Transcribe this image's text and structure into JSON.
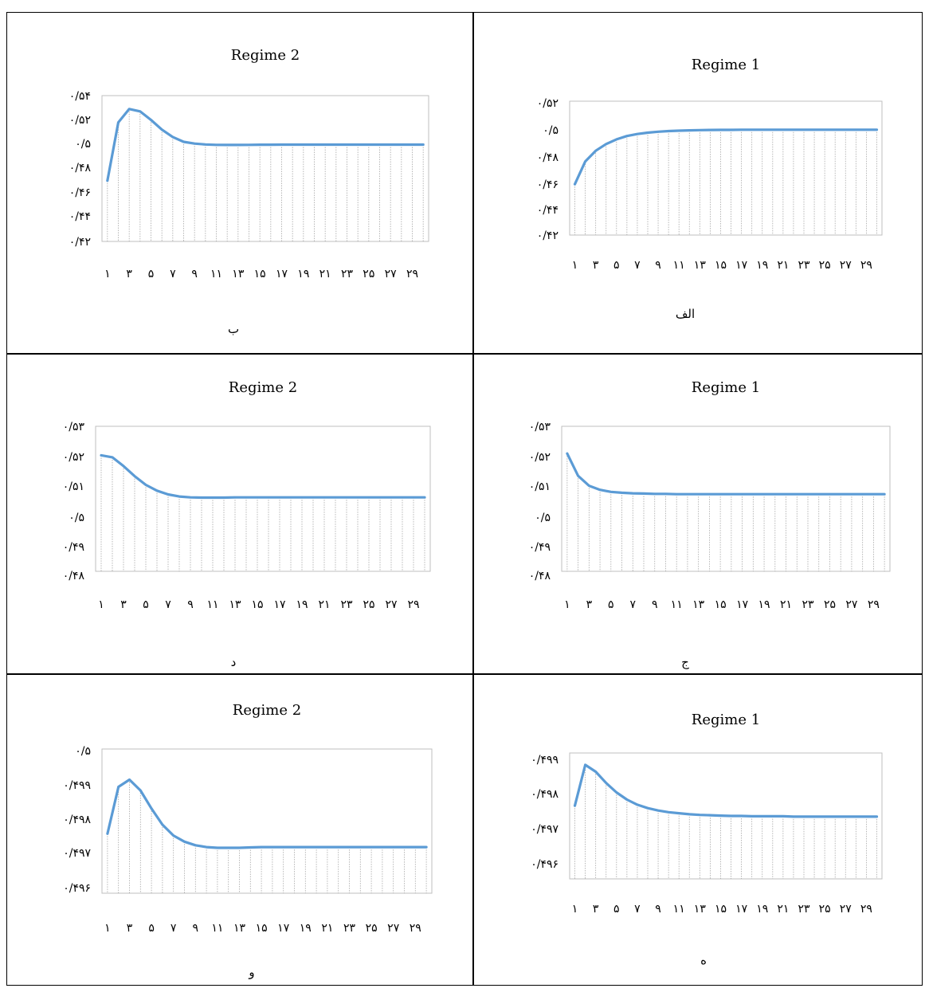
{
  "charts": [
    {
      "id": "b",
      "caption": "ب",
      "chart_data": {
        "type": "line",
        "title": "Regime 2",
        "x": [
          1,
          2,
          3,
          4,
          5,
          6,
          7,
          8,
          9,
          10,
          11,
          12,
          13,
          14,
          15,
          16,
          17,
          18,
          19,
          20,
          21,
          22,
          23,
          24,
          25,
          26,
          27,
          28,
          29,
          30
        ],
        "x_tick_labels": [
          "۱",
          "۳",
          "۵",
          "۷",
          "۹",
          "۱۱",
          "۱۳",
          "۱۵",
          "۱۷",
          "۱۹",
          "۲۱",
          "۲۳",
          "۲۵",
          "۲۷",
          "۲۹"
        ],
        "y_tick_labels": [
          "۰/۵۴",
          "۰/۵۲",
          "۰/۵",
          "۰/۴۸",
          "۰/۴۶",
          "۰/۴۴",
          "۰/۴۲"
        ],
        "ylim": [
          0.42,
          0.54
        ],
        "series": [
          {
            "values": [
              0.47,
              0.518,
              0.529,
              0.527,
              0.52,
              0.512,
              0.506,
              0.502,
              0.5005,
              0.4998,
              0.4995,
              0.4994,
              0.4994,
              0.4995,
              0.4996,
              0.4996,
              0.4997,
              0.4997,
              0.4997,
              0.4997,
              0.4997,
              0.4997,
              0.4997,
              0.4997,
              0.4997,
              0.4997,
              0.4997,
              0.4997,
              0.4997,
              0.4997
            ]
          }
        ],
        "color": "#5b9bd5",
        "vertical_gridlines": true
      }
    },
    {
      "id": "alef",
      "caption": "الف",
      "chart_data": {
        "type": "line",
        "title": "Regime 1",
        "x": [
          1,
          2,
          3,
          4,
          5,
          6,
          7,
          8,
          9,
          10,
          11,
          12,
          13,
          14,
          15,
          16,
          17,
          18,
          19,
          20,
          21,
          22,
          23,
          24,
          25,
          26,
          27,
          28,
          29,
          30
        ],
        "x_tick_labels": [
          "۱",
          "۳",
          "۵",
          "۷",
          "۹",
          "۱۱",
          "۱۳",
          "۱۵",
          "۱۷",
          "۱۹",
          "۲۱",
          "۲۳",
          "۲۵",
          "۲۷",
          "۲۹"
        ],
        "y_tick_labels": [
          "۰/۵۲",
          "۰/۵",
          "۰/۴۸",
          "۰/۴۶",
          "۰/۴۴",
          "۰/۴۲"
        ],
        "ylim": [
          0.42,
          0.52
        ],
        "series": [
          {
            "values": [
              0.458,
              0.475,
              0.483,
              0.488,
              0.4915,
              0.494,
              0.4955,
              0.4965,
              0.4972,
              0.4977,
              0.498,
              0.4982,
              0.4984,
              0.4985,
              0.4986,
              0.4986,
              0.4987,
              0.4987,
              0.4987,
              0.4987,
              0.4987,
              0.4987,
              0.4987,
              0.4987,
              0.4987,
              0.4987,
              0.4987,
              0.4987,
              0.4987,
              0.4987
            ]
          }
        ],
        "color": "#5b9bd5",
        "vertical_gridlines": true
      }
    },
    {
      "id": "dal",
      "caption": "د",
      "chart_data": {
        "type": "line",
        "title": "Regime 2",
        "x": [
          1,
          2,
          3,
          4,
          5,
          6,
          7,
          8,
          9,
          10,
          11,
          12,
          13,
          14,
          15,
          16,
          17,
          18,
          19,
          20,
          21,
          22,
          23,
          24,
          25,
          26,
          27,
          28,
          29,
          30
        ],
        "x_tick_labels": [
          "۱",
          "۳",
          "۵",
          "۷",
          "۹",
          "۱۱",
          "۱۳",
          "۱۵",
          "۱۷",
          "۱۹",
          "۲۱",
          "۲۳",
          "۲۵",
          "۲۷",
          "۲۹"
        ],
        "y_tick_labels": [
          "۰/۵۳",
          "۰/۵۲",
          "۰/۵۱",
          "۰/۵",
          "۰/۴۹",
          "۰/۴۸"
        ],
        "ylim": [
          0.48,
          0.53
        ],
        "series": [
          {
            "values": [
              0.52,
              0.5193,
              0.5163,
              0.5128,
              0.5098,
              0.5078,
              0.5065,
              0.5058,
              0.5055,
              0.5054,
              0.5054,
              0.5054,
              0.5055,
              0.5055,
              0.5055,
              0.5055,
              0.5055,
              0.5055,
              0.5055,
              0.5055,
              0.5055,
              0.5055,
              0.5055,
              0.5055,
              0.5055,
              0.5055,
              0.5055,
              0.5055,
              0.5055,
              0.5055
            ]
          }
        ],
        "color": "#5b9bd5",
        "vertical_gridlines": true
      }
    },
    {
      "id": "jim",
      "caption": "ج",
      "chart_data": {
        "type": "line",
        "title": "Regime 1",
        "x": [
          1,
          2,
          3,
          4,
          5,
          6,
          7,
          8,
          9,
          10,
          11,
          12,
          13,
          14,
          15,
          16,
          17,
          18,
          19,
          20,
          21,
          22,
          23,
          24,
          25,
          26,
          27,
          28,
          29,
          30
        ],
        "x_tick_labels": [
          "۱",
          "۳",
          "۵",
          "۷",
          "۹",
          "۱۱",
          "۱۳",
          "۱۵",
          "۱۷",
          "۱۹",
          "۲۱",
          "۲۳",
          "۲۵",
          "۲۷",
          "۲۹"
        ],
        "y_tick_labels": [
          "۰/۵۳",
          "۰/۵۲",
          "۰/۵۱",
          "۰/۵",
          "۰/۴۹",
          "۰/۴۸"
        ],
        "ylim": [
          0.48,
          0.53
        ],
        "series": [
          {
            "values": [
              0.5206,
              0.5129,
              0.5095,
              0.5081,
              0.5074,
              0.5071,
              0.5069,
              0.5068,
              0.5067,
              0.5067,
              0.5066,
              0.5066,
              0.5066,
              0.5066,
              0.5066,
              0.5066,
              0.5066,
              0.5066,
              0.5066,
              0.5066,
              0.5066,
              0.5066,
              0.5066,
              0.5066,
              0.5066,
              0.5066,
              0.5066,
              0.5066,
              0.5066,
              0.5066
            ]
          }
        ],
        "color": "#5b9bd5",
        "vertical_gridlines": true
      }
    },
    {
      "id": "vav",
      "caption": "و",
      "chart_data": {
        "type": "line",
        "title": "Regime 2",
        "x": [
          1,
          2,
          3,
          4,
          5,
          6,
          7,
          8,
          9,
          10,
          11,
          12,
          13,
          14,
          15,
          16,
          17,
          18,
          19,
          20,
          21,
          22,
          23,
          24,
          25,
          26,
          27,
          28,
          29,
          30
        ],
        "x_tick_labels": [
          "۱",
          "۳",
          "۵",
          "۷",
          "۹",
          "۱۱",
          "۱۳",
          "۱۵",
          "۱۷",
          "۱۹",
          "۲۱",
          "۲۳",
          "۲۵",
          "۲۷",
          "۲۹"
        ],
        "y_tick_labels": [
          "۰/۵",
          "۰/۴۹۹",
          "۰/۴۹۸",
          "۰/۴۹۷",
          "۰/۴۹۶"
        ],
        "ylim": [
          0.496,
          0.5
        ],
        "series": [
          {
            "values": [
              0.49765,
              0.49895,
              0.49915,
              0.49885,
              0.49835,
              0.4979,
              0.4976,
              0.49743,
              0.49733,
              0.49728,
              0.49726,
              0.49726,
              0.49726,
              0.49727,
              0.49728,
              0.49728,
              0.49728,
              0.49728,
              0.49728,
              0.49728,
              0.49728,
              0.49728,
              0.49728,
              0.49728,
              0.49728,
              0.49728,
              0.49728,
              0.49728,
              0.49728,
              0.49728
            ]
          }
        ],
        "color": "#5b9bd5",
        "vertical_gridlines": true
      }
    },
    {
      "id": "he",
      "caption": "ه",
      "chart_data": {
        "type": "line",
        "title": "Regime 1",
        "x": [
          1,
          2,
          3,
          4,
          5,
          6,
          7,
          8,
          9,
          10,
          11,
          12,
          13,
          14,
          15,
          16,
          17,
          18,
          19,
          20,
          21,
          22,
          23,
          24,
          25,
          26,
          27,
          28,
          29,
          30
        ],
        "x_tick_labels": [
          "۱",
          "۳",
          "۵",
          "۷",
          "۹",
          "۱۱",
          "۱۳",
          "۱۵",
          "۱۷",
          "۱۹",
          "۲۱",
          "۲۳",
          "۲۵",
          "۲۷",
          "۲۹"
        ],
        "y_tick_labels": [
          "۰/۴۹۹",
          "۰/۴۹۸",
          "۰/۴۹۷",
          "۰/۴۹۶"
        ],
        "ylim": [
          0.4955,
          0.4992
        ],
        "series": [
          {
            "values": [
              0.49765,
              0.49885,
              0.49865,
              0.49832,
              0.49804,
              0.49783,
              0.49768,
              0.49758,
              0.49751,
              0.49746,
              0.49743,
              0.4974,
              0.49738,
              0.49737,
              0.49736,
              0.49735,
              0.49735,
              0.49734,
              0.49734,
              0.49734,
              0.49734,
              0.49733,
              0.49733,
              0.49733,
              0.49733,
              0.49733,
              0.49733,
              0.49733,
              0.49733,
              0.49733
            ]
          }
        ],
        "color": "#5b9bd5",
        "vertical_gridlines": true
      }
    }
  ]
}
